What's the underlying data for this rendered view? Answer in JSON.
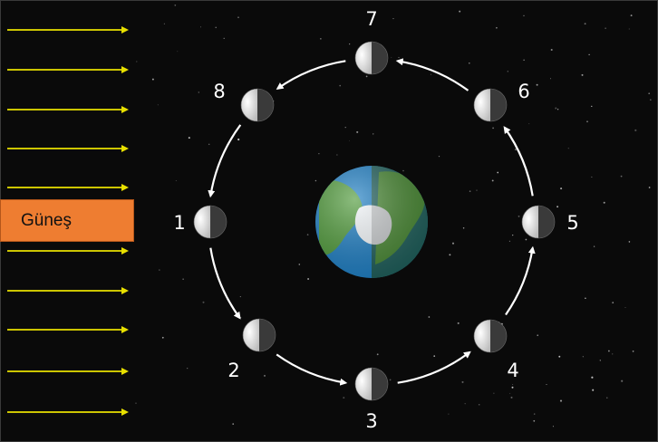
{
  "sun": {
    "label": "Güneş"
  },
  "positions": [
    {
      "label": "1",
      "lit": "left"
    },
    {
      "label": "2",
      "lit": "left"
    },
    {
      "label": "3",
      "lit": "left"
    },
    {
      "label": "4",
      "lit": "left"
    },
    {
      "label": "5",
      "lit": "left"
    },
    {
      "label": "6",
      "lit": "left"
    },
    {
      "label": "7",
      "lit": "left"
    },
    {
      "label": "8",
      "lit": "left"
    }
  ],
  "sunlight_ray_count": 11,
  "colors": {
    "space": "#0a0a0a",
    "sunlight": "#e8e000",
    "orbit_arrow": "#ffffff",
    "sun_label_bg": "#ee7d31",
    "earth_ocean": "#1f7fc4",
    "earth_land": "#4f9a3a"
  }
}
